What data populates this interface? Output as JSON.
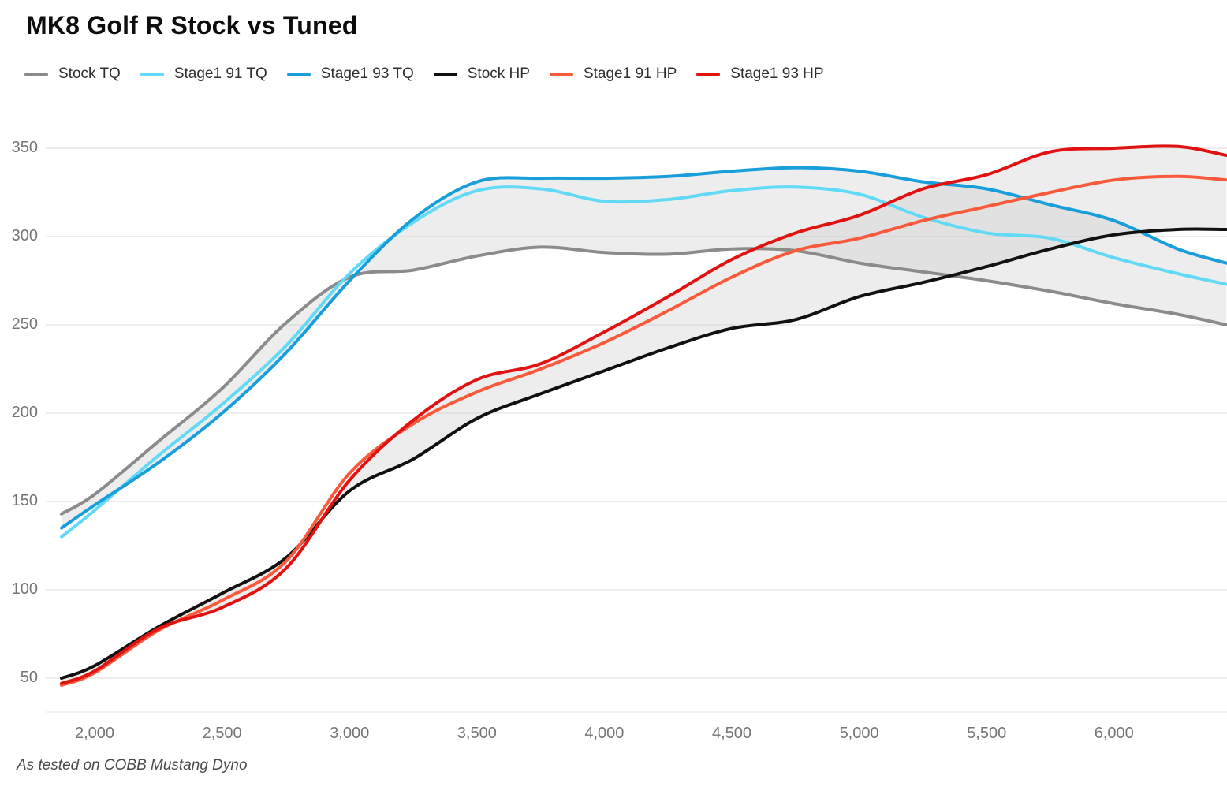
{
  "header": {
    "title": "MK8 Golf R Stock vs Tuned"
  },
  "footer": {
    "note": "As tested on COBB Mustang Dyno"
  },
  "chart_data": {
    "type": "line",
    "title": "MK8 Golf R Stock vs Tuned",
    "xlabel": "",
    "ylabel": "",
    "xlim": [
      1870,
      6440
    ],
    "ylim": [
      50,
      350
    ],
    "grid": true,
    "legend_position": "top-left",
    "gridline_color": "#e7e7e7",
    "band_fill": "#c9c9c9",
    "band_opacity": 0.34,
    "x_ticks": [
      {
        "v": 2000,
        "label": "2,000"
      },
      {
        "v": 2500,
        "label": "2,500"
      },
      {
        "v": 3000,
        "label": "3,000"
      },
      {
        "v": 3500,
        "label": "3,500"
      },
      {
        "v": 4000,
        "label": "4,000"
      },
      {
        "v": 4500,
        "label": "4,500"
      },
      {
        "v": 5000,
        "label": "5,000"
      },
      {
        "v": 5500,
        "label": "5,500"
      },
      {
        "v": 6000,
        "label": "6,000"
      }
    ],
    "y_ticks": [
      {
        "v": 50,
        "label": "50"
      },
      {
        "v": 100,
        "label": "100"
      },
      {
        "v": 150,
        "label": "150"
      },
      {
        "v": 200,
        "label": "200"
      },
      {
        "v": 250,
        "label": "250"
      },
      {
        "v": 300,
        "label": "300"
      },
      {
        "v": 350,
        "label": "350"
      }
    ],
    "series": [
      {
        "name": "Stock TQ",
        "color": "#8b8b8b",
        "points": [
          [
            1870,
            143
          ],
          [
            2000,
            154
          ],
          [
            2250,
            184
          ],
          [
            2500,
            214
          ],
          [
            2750,
            251
          ],
          [
            3000,
            277
          ],
          [
            3250,
            281
          ],
          [
            3500,
            289
          ],
          [
            3750,
            294
          ],
          [
            4000,
            291
          ],
          [
            4250,
            290
          ],
          [
            4500,
            293
          ],
          [
            4750,
            292
          ],
          [
            5000,
            285
          ],
          [
            5250,
            280
          ],
          [
            5500,
            275
          ],
          [
            5750,
            269
          ],
          [
            6000,
            262
          ],
          [
            6250,
            256
          ],
          [
            6440,
            250
          ]
        ]
      },
      {
        "name": "Stage1 91 TQ",
        "color": "#62daf5",
        "points": [
          [
            1870,
            130
          ],
          [
            2000,
            145
          ],
          [
            2250,
            176
          ],
          [
            2500,
            205
          ],
          [
            2750,
            238
          ],
          [
            3000,
            279
          ],
          [
            3250,
            308
          ],
          [
            3500,
            326
          ],
          [
            3750,
            327
          ],
          [
            4000,
            320
          ],
          [
            4250,
            321
          ],
          [
            4500,
            326
          ],
          [
            4750,
            328
          ],
          [
            5000,
            324
          ],
          [
            5250,
            311
          ],
          [
            5500,
            302
          ],
          [
            5750,
            299
          ],
          [
            6000,
            288
          ],
          [
            6250,
            279
          ],
          [
            6440,
            273
          ]
        ]
      },
      {
        "name": "Stage1 93 TQ",
        "color": "#189fdb",
        "points": [
          [
            1870,
            135
          ],
          [
            2000,
            148
          ],
          [
            2250,
            172
          ],
          [
            2500,
            200
          ],
          [
            2750,
            234
          ],
          [
            3000,
            275
          ],
          [
            3250,
            310
          ],
          [
            3500,
            331
          ],
          [
            3750,
            333
          ],
          [
            4000,
            333
          ],
          [
            4250,
            334
          ],
          [
            4500,
            337
          ],
          [
            4750,
            339
          ],
          [
            5000,
            337
          ],
          [
            5250,
            331
          ],
          [
            5500,
            327
          ],
          [
            5750,
            318
          ],
          [
            6000,
            309
          ],
          [
            6250,
            293
          ],
          [
            6440,
            285
          ]
        ]
      },
      {
        "name": "Stock HP",
        "color": "#111111",
        "points": [
          [
            1870,
            50
          ],
          [
            2000,
            57
          ],
          [
            2250,
            79
          ],
          [
            2500,
            98
          ],
          [
            2750,
            118
          ],
          [
            3000,
            156
          ],
          [
            3250,
            174
          ],
          [
            3500,
            197
          ],
          [
            3750,
            211
          ],
          [
            4000,
            224
          ],
          [
            4250,
            237
          ],
          [
            4500,
            248
          ],
          [
            4750,
            253
          ],
          [
            5000,
            266
          ],
          [
            5250,
            274
          ],
          [
            5500,
            283
          ],
          [
            5750,
            293
          ],
          [
            6000,
            301
          ],
          [
            6250,
            304
          ],
          [
            6440,
            304
          ]
        ]
      },
      {
        "name": "Stage1 91 HP",
        "color": "#fa5a3c",
        "points": [
          [
            1870,
            46
          ],
          [
            2000,
            53
          ],
          [
            2250,
            77
          ],
          [
            2500,
            94
          ],
          [
            2750,
            116
          ],
          [
            3000,
            166
          ],
          [
            3250,
            194
          ],
          [
            3500,
            212
          ],
          [
            3750,
            225
          ],
          [
            4000,
            240
          ],
          [
            4250,
            258
          ],
          [
            4500,
            277
          ],
          [
            4750,
            292
          ],
          [
            5000,
            299
          ],
          [
            5250,
            309
          ],
          [
            5500,
            317
          ],
          [
            5750,
            325
          ],
          [
            6000,
            332
          ],
          [
            6250,
            334
          ],
          [
            6440,
            332
          ]
        ]
      },
      {
        "name": "Stage1 93 HP",
        "color": "#e11212",
        "points": [
          [
            1870,
            47
          ],
          [
            2000,
            54
          ],
          [
            2250,
            78
          ],
          [
            2500,
            90
          ],
          [
            2750,
            112
          ],
          [
            3000,
            162
          ],
          [
            3250,
            196
          ],
          [
            3500,
            219
          ],
          [
            3750,
            228
          ],
          [
            4000,
            246
          ],
          [
            4250,
            266
          ],
          [
            4500,
            287
          ],
          [
            4750,
            302
          ],
          [
            5000,
            312
          ],
          [
            5250,
            327
          ],
          [
            5500,
            335
          ],
          [
            5750,
            348
          ],
          [
            6000,
            350
          ],
          [
            6250,
            351
          ],
          [
            6440,
            346
          ]
        ]
      }
    ],
    "bands": [
      {
        "lower": "Stock TQ",
        "upper": "Stage1 93 TQ"
      },
      {
        "lower": "Stock HP",
        "upper": "Stage1 93 HP"
      }
    ]
  }
}
